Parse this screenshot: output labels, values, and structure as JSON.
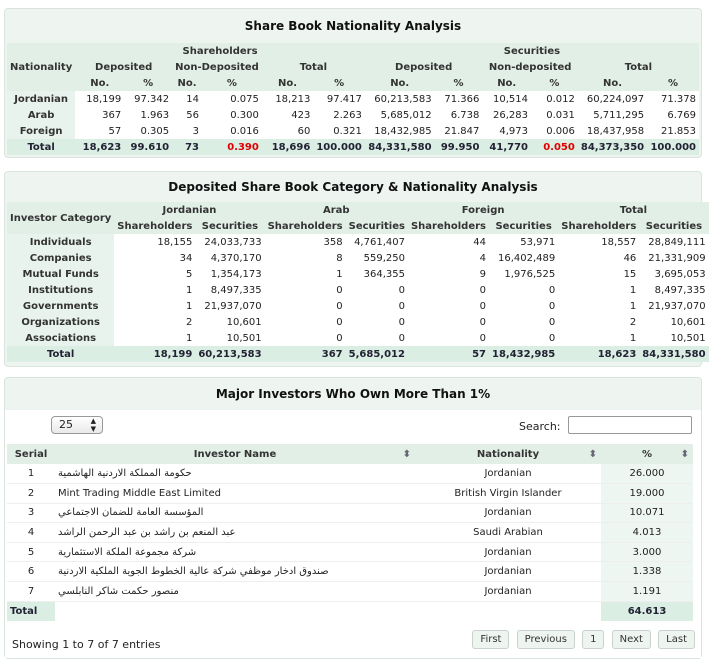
{
  "nationality": {
    "title": "Share Book Nationality Analysis",
    "h_nationality": "Nationality",
    "h_shareholders": "Shareholders",
    "h_securities": "Securities",
    "h_deposited": "Deposited",
    "h_nondeposited": "Non-Deposited",
    "h_nondeposited2": "Non-deposited",
    "h_total": "Total",
    "h_no": "No.",
    "h_pct": "%",
    "rows": [
      {
        "label": "Jordanian",
        "c": [
          "18,199",
          "97.342",
          "14",
          "0.075",
          "18,213",
          "97.417",
          "60,213,583",
          "71.366",
          "10,514",
          "0.012",
          "60,224,097",
          "71.378"
        ]
      },
      {
        "label": "Arab",
        "c": [
          "367",
          "1.963",
          "56",
          "0.300",
          "423",
          "2.263",
          "5,685,012",
          "6.738",
          "26,283",
          "0.031",
          "5,711,295",
          "6.769"
        ]
      },
      {
        "label": "Foreign",
        "c": [
          "57",
          "0.305",
          "3",
          "0.016",
          "60",
          "0.321",
          "18,432,985",
          "21.847",
          "4,973",
          "0.006",
          "18,437,958",
          "21.853"
        ]
      }
    ],
    "total": {
      "label": "Total",
      "c": [
        "18,623",
        "99.610",
        "73",
        "0.390",
        "18,696",
        "100.000",
        "84,331,580",
        "99.950",
        "41,770",
        "0.050",
        "84,373,350",
        "100.000"
      ]
    }
  },
  "category": {
    "title": "Deposited Share Book Category & Nationality Analysis",
    "h_investor_category": "Investor Category",
    "h_groups": [
      "Jordanian",
      "Arab",
      "Foreign",
      "Total"
    ],
    "h_shareholders": "Shareholders",
    "h_securities": "Securities",
    "rows": [
      {
        "label": "Individuals",
        "c": [
          "18,155",
          "24,033,733",
          "358",
          "4,761,407",
          "44",
          "53,971",
          "18,557",
          "28,849,111"
        ]
      },
      {
        "label": "Companies",
        "c": [
          "34",
          "4,370,170",
          "8",
          "559,250",
          "4",
          "16,402,489",
          "46",
          "21,331,909"
        ]
      },
      {
        "label": "Mutual Funds",
        "c": [
          "5",
          "1,354,173",
          "1",
          "364,355",
          "9",
          "1,976,525",
          "15",
          "3,695,053"
        ]
      },
      {
        "label": "Institutions",
        "c": [
          "1",
          "8,497,335",
          "0",
          "0",
          "0",
          "0",
          "1",
          "8,497,335"
        ]
      },
      {
        "label": "Governments",
        "c": [
          "1",
          "21,937,070",
          "0",
          "0",
          "0",
          "0",
          "1",
          "21,937,070"
        ]
      },
      {
        "label": "Organizations",
        "c": [
          "2",
          "10,601",
          "0",
          "0",
          "0",
          "0",
          "2",
          "10,601"
        ]
      },
      {
        "label": "Associations",
        "c": [
          "1",
          "10,501",
          "0",
          "0",
          "0",
          "0",
          "1",
          "10,501"
        ]
      }
    ],
    "total": {
      "label": "Total",
      "c": [
        "18,199",
        "60,213,583",
        "367",
        "5,685,012",
        "57",
        "18,432,985",
        "18,623",
        "84,331,580"
      ]
    }
  },
  "investors": {
    "title": "Major Investors Who Own More Than 1%",
    "page_size": "25",
    "search_label": "Search:",
    "search_value": "",
    "h_serial": "Serial",
    "h_name": "Investor Name",
    "h_nationality": "Nationality",
    "h_pct": "%",
    "rows": [
      {
        "serial": "1",
        "name": "حكومة المملكة الاردنية الهاشمية",
        "nat": "Jordanian",
        "pct": "26.000"
      },
      {
        "serial": "2",
        "name": "Mint Trading Middle East Limited",
        "nat": "British Virgin Islander",
        "pct": "19.000"
      },
      {
        "serial": "3",
        "name": "المؤسسة العامة للضمان الاجتماعي",
        "nat": "Jordanian",
        "pct": "10.071"
      },
      {
        "serial": "4",
        "name": "عبد المنعم بن راشد بن عبد الرحمن الراشد",
        "nat": "Saudi Arabian",
        "pct": "4.013"
      },
      {
        "serial": "5",
        "name": "شركة مجموعة الملكة الاستثمارية",
        "nat": "Jordanian",
        "pct": "3.000"
      },
      {
        "serial": "6",
        "name": "صندوق ادخار موظفي شركة عالية الخطوط الجوية الملكية الاردنية",
        "nat": "Jordanian",
        "pct": "1.338"
      },
      {
        "serial": "7",
        "name": "منصور حكمت شاكر النابلسي",
        "nat": "Jordanian",
        "pct": "1.191"
      }
    ],
    "total_label": "Total",
    "total_pct": "64.613",
    "info": "Showing 1 to 7 of 7 entries",
    "pagination": {
      "first": "First",
      "previous": "Previous",
      "current": "1",
      "next": "Next",
      "last": "Last"
    }
  },
  "colors": {
    "header_bg": "#e2efe7",
    "panel_bg": "#eef5f1",
    "total_bg": "#dbeee4",
    "negative_red": "#e00000"
  }
}
